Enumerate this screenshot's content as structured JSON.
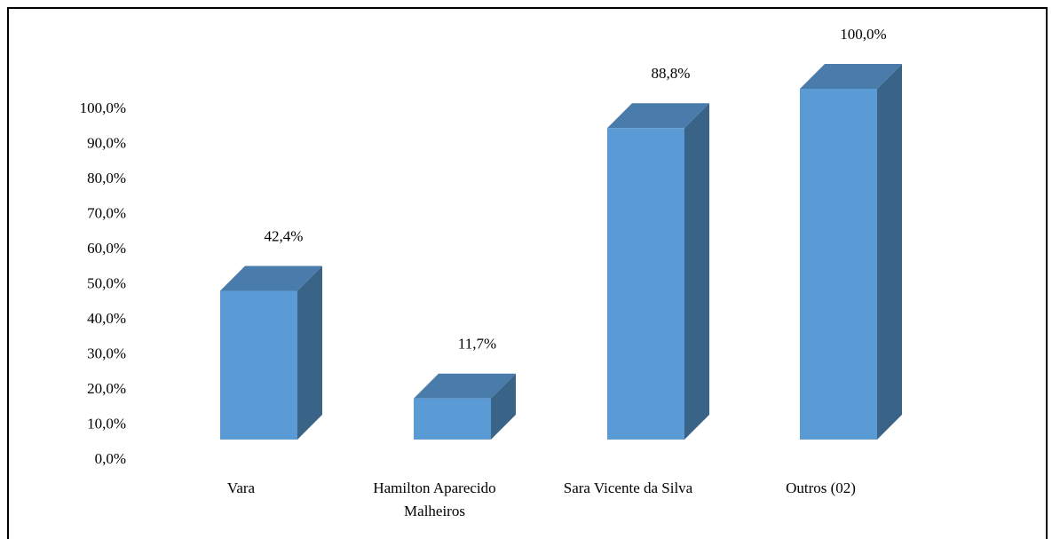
{
  "chart_data": {
    "type": "bar3d",
    "categories": [
      "Vara",
      "Hamilton Aparecido Malheiros",
      "Sara Vicente da Silva",
      "Outros (02)"
    ],
    "values": [
      42.4,
      11.7,
      88.8,
      100
    ],
    "value_labels": [
      "42,4%",
      "11,7%",
      "88,8%",
      "100,0%"
    ],
    "color": "#5b9bd5",
    "ylim": [
      0,
      100
    ],
    "yticks": [
      {
        "value": 0,
        "label": "0,0%"
      },
      {
        "value": 10,
        "label": "10,0%"
      },
      {
        "value": 20,
        "label": "20,0%"
      },
      {
        "value": 30,
        "label": "30,0%"
      },
      {
        "value": 40,
        "label": "40,0%"
      },
      {
        "value": 50,
        "label": "50,0%"
      },
      {
        "value": 60,
        "label": "60,0%"
      },
      {
        "value": 70,
        "label": "70,0%"
      },
      {
        "value": 80,
        "label": "80,0%"
      },
      {
        "value": 90,
        "label": "90,0%"
      },
      {
        "value": 100,
        "label": "100,0%"
      }
    ]
  }
}
